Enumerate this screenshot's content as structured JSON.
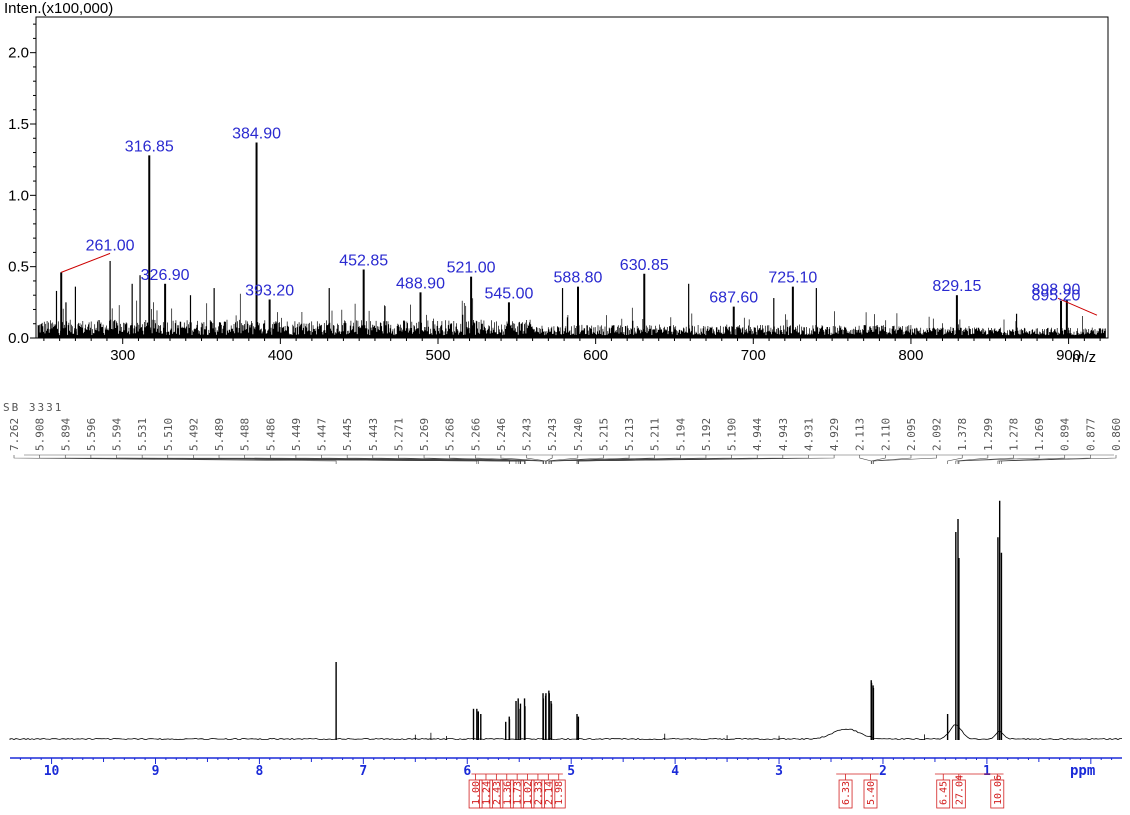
{
  "chart_data": [
    {
      "type": "bar",
      "ylabel": "Inten.(x100,000)",
      "xlabel": "m/z",
      "xlim": [
        245,
        925
      ],
      "ylim": [
        0,
        2.25
      ],
      "xticks": [
        300,
        400,
        500,
        600,
        700,
        800,
        900
      ],
      "xtick_labels": [
        "300",
        "400",
        "500",
        "600",
        "700",
        "800",
        "900"
      ],
      "yticks": [
        0,
        0.5,
        1.0,
        1.5,
        2.0
      ],
      "ytick_labels": [
        "0.0",
        "0.5",
        "1.0",
        "1.5",
        "2.0"
      ],
      "labeled_peaks": [
        {
          "mz": 261.0,
          "label": "261.00",
          "intensity": 0.46,
          "leader": true,
          "label_mz": 292,
          "label_y": 0.6
        },
        {
          "mz": 316.85,
          "label": "316.85",
          "intensity": 1.28
        },
        {
          "mz": 326.9,
          "label": "326.90",
          "intensity": 0.38
        },
        {
          "mz": 384.9,
          "label": "384.90",
          "intensity": 1.37
        },
        {
          "mz": 393.2,
          "label": "393.20",
          "intensity": 0.27
        },
        {
          "mz": 452.85,
          "label": "452.85",
          "intensity": 0.48
        },
        {
          "mz": 488.9,
          "label": "488.90",
          "intensity": 0.32
        },
        {
          "mz": 521.0,
          "label": "521.00",
          "intensity": 0.43
        },
        {
          "mz": 545.0,
          "label": "545.00",
          "intensity": 0.25
        },
        {
          "mz": 588.8,
          "label": "588.80",
          "intensity": 0.36
        },
        {
          "mz": 630.85,
          "label": "630.85",
          "intensity": 0.45
        },
        {
          "mz": 687.6,
          "label": "687.60",
          "intensity": 0.22
        },
        {
          "mz": 725.1,
          "label": "725.10",
          "intensity": 0.36
        },
        {
          "mz": 829.15,
          "label": "829.15",
          "intensity": 0.3
        },
        {
          "mz": 895.2,
          "label": "895.20",
          "intensity": 0.26,
          "leader": true,
          "label_mz": 892,
          "label_y": 0.25,
          "leader_to_mz": 918,
          "leader_to_y": 0.16
        },
        {
          "mz": 898.9,
          "label": "898.90",
          "intensity": 0.27,
          "label_mz": 892,
          "label_y": 0.29
        }
      ],
      "other_peaks": [
        {
          "mz": 258.0,
          "intensity": 0.33
        },
        {
          "mz": 264.0,
          "intensity": 0.25
        },
        {
          "mz": 270.0,
          "intensity": 0.36
        },
        {
          "mz": 292.0,
          "intensity": 0.54
        },
        {
          "mz": 306.0,
          "intensity": 0.38
        },
        {
          "mz": 311.0,
          "intensity": 0.44
        },
        {
          "mz": 343.0,
          "intensity": 0.3
        },
        {
          "mz": 358.0,
          "intensity": 0.35
        },
        {
          "mz": 431.0,
          "intensity": 0.35
        },
        {
          "mz": 579.0,
          "intensity": 0.35
        },
        {
          "mz": 659.0,
          "intensity": 0.38
        },
        {
          "mz": 713.0,
          "intensity": 0.28
        },
        {
          "mz": 740.0,
          "intensity": 0.35
        },
        {
          "mz": 867.0,
          "intensity": 0.17
        }
      ]
    },
    {
      "type": "line",
      "title": "SB 3331",
      "xlabel": "ppm",
      "xlim": [
        10.4,
        -0.3
      ],
      "xticks": [
        10,
        9,
        8,
        7,
        6,
        5,
        4,
        3,
        2,
        1
      ],
      "xtick_labels": [
        "10",
        "9",
        "8",
        "7",
        "6",
        "5",
        "4",
        "3",
        "2",
        "1"
      ],
      "peak_labels": [
        "7.262",
        "5.908",
        "5.894",
        "5.596",
        "5.594",
        "5.531",
        "5.510",
        "5.492",
        "5.489",
        "5.488",
        "5.486",
        "5.449",
        "5.447",
        "5.445",
        "5.443",
        "5.271",
        "5.269",
        "5.268",
        "5.266",
        "5.246",
        "5.243",
        "5.243",
        "5.240",
        "5.215",
        "5.213",
        "5.211",
        "5.194",
        "5.192",
        "5.190",
        "4.944",
        "4.943",
        "4.931",
        "4.929",
        "2.113",
        "2.110",
        "2.095",
        "2.092",
        "1.378",
        "1.299",
        "1.278",
        "1.269",
        "0.894",
        "0.877",
        "0.860"
      ],
      "peaks": [
        {
          "ppm": 7.262,
          "height": 0.3
        },
        {
          "ppm": 5.94,
          "height": 0.12
        },
        {
          "ppm": 5.908,
          "height": 0.12
        },
        {
          "ppm": 5.894,
          "height": 0.11
        },
        {
          "ppm": 5.87,
          "height": 0.1
        },
        {
          "ppm": 5.63,
          "height": 0.07
        },
        {
          "ppm": 5.596,
          "height": 0.09
        },
        {
          "ppm": 5.594,
          "height": 0.08
        },
        {
          "ppm": 5.531,
          "height": 0.15
        },
        {
          "ppm": 5.51,
          "height": 0.16
        },
        {
          "ppm": 5.492,
          "height": 0.12
        },
        {
          "ppm": 5.488,
          "height": 0.14
        },
        {
          "ppm": 5.449,
          "height": 0.16
        },
        {
          "ppm": 5.445,
          "height": 0.13
        },
        {
          "ppm": 5.271,
          "height": 0.18
        },
        {
          "ppm": 5.268,
          "height": 0.16
        },
        {
          "ppm": 5.246,
          "height": 0.17
        },
        {
          "ppm": 5.243,
          "height": 0.18
        },
        {
          "ppm": 5.215,
          "height": 0.19
        },
        {
          "ppm": 5.211,
          "height": 0.18
        },
        {
          "ppm": 5.194,
          "height": 0.15
        },
        {
          "ppm": 5.19,
          "height": 0.14
        },
        {
          "ppm": 4.944,
          "height": 0.1
        },
        {
          "ppm": 4.931,
          "height": 0.09
        },
        {
          "ppm": 2.113,
          "height": 0.23
        },
        {
          "ppm": 2.11,
          "height": 0.22
        },
        {
          "ppm": 2.095,
          "height": 0.21
        },
        {
          "ppm": 2.092,
          "height": 0.2
        },
        {
          "ppm": 1.378,
          "height": 0.1
        },
        {
          "ppm": 1.299,
          "height": 0.8
        },
        {
          "ppm": 1.278,
          "height": 0.85
        },
        {
          "ppm": 1.269,
          "height": 0.7
        },
        {
          "ppm": 0.894,
          "height": 0.78
        },
        {
          "ppm": 0.877,
          "height": 0.92
        },
        {
          "ppm": 0.86,
          "height": 0.72
        }
      ],
      "integrals": [
        {
          "label": "1.00",
          "center": 5.92
        },
        {
          "label": "1.24",
          "center": 5.82
        },
        {
          "label": "2.43",
          "center": 5.72
        },
        {
          "label": "1.36",
          "center": 5.62
        },
        {
          "label": "1.73",
          "center": 5.52
        },
        {
          "label": "1.02",
          "center": 5.42
        },
        {
          "label": "2.33",
          "center": 5.32
        },
        {
          "label": "2.14",
          "center": 5.22
        },
        {
          "label": "1.98",
          "center": 5.12
        },
        {
          "label": "6.33",
          "center": 2.36
        },
        {
          "label": "5.40",
          "center": 2.12
        },
        {
          "label": "6.45",
          "center": 1.42
        },
        {
          "label": "27.04",
          "center": 1.27
        },
        {
          "label": "10.06",
          "center": 0.9
        }
      ]
    }
  ],
  "colors": {
    "axis": "#000000",
    "peak_label": "#2a2ad0",
    "leader": "#cc0000",
    "nmr_axis": "#1b2bd8",
    "integral": "#d21f1f",
    "ticklabel_grey": "#555555"
  }
}
